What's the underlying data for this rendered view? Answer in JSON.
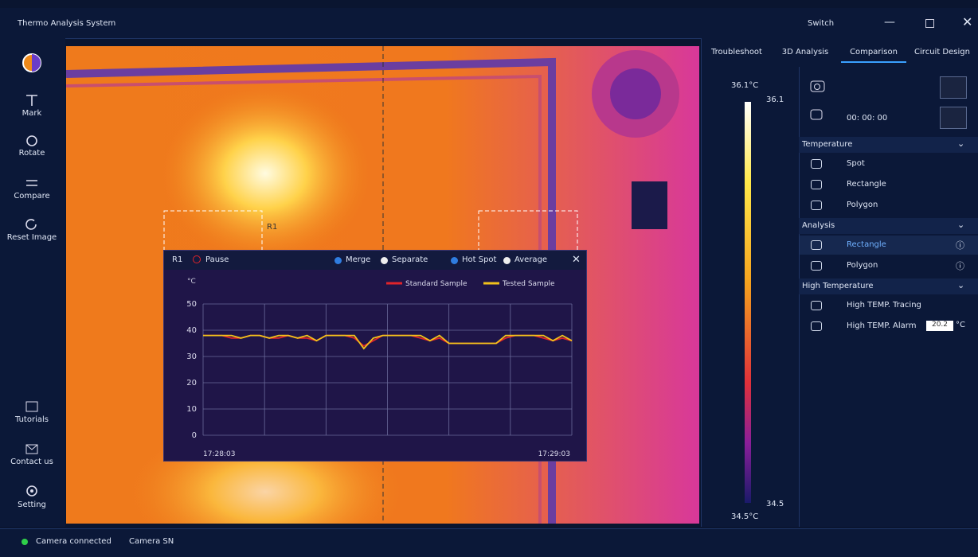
{
  "window": {
    "title": "Thermo Analysis System",
    "switch": "Switch"
  },
  "sidebar": {
    "top": [
      "Mark",
      "Rotate",
      "Compare",
      "Reset Image"
    ],
    "bottom": [
      "Tutorials",
      "Contact us",
      "Setting"
    ]
  },
  "tabs": [
    "Troubleshoot",
    "3D Analysis",
    "Comparison",
    "Circuit Design"
  ],
  "scale": {
    "max_label": "36.1°C",
    "top": "36.1",
    "bottom": "34.5",
    "min_label": "34.5°C"
  },
  "regions": [
    "R1"
  ],
  "record_time": "00: 00: 00",
  "panel": {
    "sections": [
      {
        "title": "Temperature",
        "items": [
          "Spot",
          "Rectangle",
          "Polygon"
        ]
      },
      {
        "title": "Analysis",
        "items": [
          "Rectangle",
          "Polygon"
        ]
      },
      {
        "title": "High Temperature",
        "items": [
          "High TEMP. Tracing",
          "High TEMP. Alarm"
        ]
      }
    ],
    "alarm_value": "20.2",
    "alarm_unit": "°C"
  },
  "status": [
    "Camera connected",
    "Camera SN"
  ],
  "popup": {
    "region": "R1",
    "pause": "Pause",
    "modes": [
      "Merge",
      "Separate"
    ],
    "stats": [
      "Hot Spot",
      "Average"
    ],
    "chart": {
      "type": "line",
      "y_unit": "°C",
      "ylim": [
        0,
        50
      ],
      "yticks": [
        0,
        10,
        20,
        30,
        40,
        50
      ],
      "x_labels": [
        "17:28:03",
        "17:29:03"
      ],
      "series": [
        {
          "name": "Standard Sample",
          "color": "#e0242a",
          "values": [
            38,
            38,
            38,
            37,
            37,
            38,
            38,
            37,
            37,
            38,
            37,
            37,
            36,
            38,
            38,
            38,
            37,
            34,
            36,
            38,
            38,
            38,
            38,
            37,
            36,
            37,
            35,
            35,
            35,
            35,
            35,
            35,
            37,
            38,
            38,
            38,
            37,
            36,
            37,
            36
          ]
        },
        {
          "name": "Tested Sample",
          "color": "#f2c21b",
          "values": [
            38,
            38,
            38,
            38,
            37,
            38,
            38,
            37,
            38,
            38,
            37,
            38,
            36,
            38,
            38,
            38,
            38,
            33,
            37,
            38,
            38,
            38,
            38,
            38,
            36,
            38,
            35,
            35,
            35,
            35,
            35,
            35,
            38,
            38,
            38,
            38,
            38,
            36,
            38,
            36
          ]
        }
      ]
    }
  }
}
